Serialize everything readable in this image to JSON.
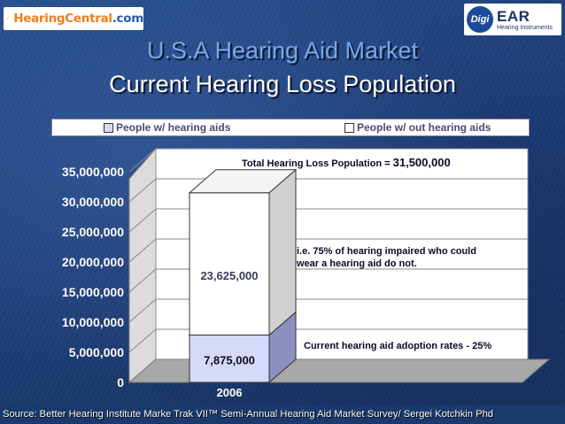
{
  "logos": {
    "left_text": "HearingCentral",
    "left_suffix": ".com",
    "right_badge": "Digi",
    "right_brand": "EAR",
    "right_sub": "Hearing Instruments"
  },
  "header": {
    "title": "U.S.A Hearing Aid Market",
    "subtitle": "Current Hearing Loss Population"
  },
  "colors": {
    "with_aids": "#d6d9f7",
    "without_aids": "#ffffff",
    "title_blue": "#78a7e8"
  },
  "chart_data": {
    "type": "bar",
    "stacked": true,
    "categories": [
      "2006"
    ],
    "series": [
      {
        "name": "People w/  hearing aids",
        "values": [
          7875000
        ],
        "label": "7,875,000"
      },
      {
        "name": "People w/ out hearing aids",
        "values": [
          23625000
        ],
        "label": "23,625,000"
      }
    ],
    "ylim": [
      0,
      35000000
    ],
    "yticks": [
      0,
      5000000,
      10000000,
      15000000,
      20000000,
      25000000,
      30000000,
      35000000
    ],
    "ytick_labels": [
      "0",
      "5,000,000",
      "10,000,000",
      "15,000,000",
      "20,000,000",
      "25,000,000",
      "30,000,000",
      "35,000,000"
    ],
    "grid": true,
    "legend_placement": "top",
    "annotations": {
      "total": "Total Hearing Loss  Population = ",
      "total_value": "31,500,000",
      "not_wear": "i.e. 75% of hearing impaired who could wear a hearing aid do not.",
      "adoption": "Current hearing aid adoption rates -  25%"
    }
  },
  "footer": {
    "source": "Source: Better Hearing Institute Marke Trak VII™ Semi-Annual Hearing Aid Market Survey/ Sergei Kotchkin Phd"
  }
}
